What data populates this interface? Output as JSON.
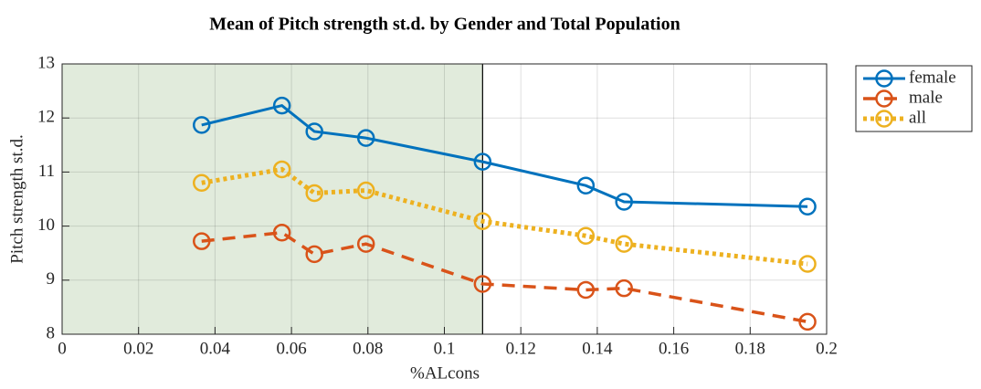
{
  "chart_data": {
    "type": "line",
    "title": "Mean of Pitch strength st.d. by Gender and Total Population",
    "x_label": "%ALcons",
    "y_label": "Pitch strength st.d.",
    "x": [
      0.0365,
      0.0575,
      0.066,
      0.0795,
      0.11,
      0.137,
      0.147,
      0.195
    ],
    "series": [
      {
        "name": "female",
        "color": "#0072bd",
        "linestyle": "solid",
        "values": [
          11.87,
          12.23,
          11.75,
          11.63,
          11.19,
          10.75,
          10.45,
          10.36
        ]
      },
      {
        "name": "male",
        "color": "#d95319",
        "linestyle": "dashed",
        "values": [
          9.72,
          9.88,
          9.48,
          9.67,
          8.93,
          8.82,
          8.85,
          8.23
        ]
      },
      {
        "name": "all",
        "color": "#edb120",
        "linestyle": "dotted",
        "values": [
          10.8,
          11.05,
          10.61,
          10.66,
          10.09,
          9.82,
          9.67,
          9.3
        ]
      }
    ],
    "xlim": [
      0,
      0.2
    ],
    "xticks": [
      0,
      0.02,
      0.04,
      0.06,
      0.08,
      0.1,
      0.12,
      0.14,
      0.16,
      0.18,
      0.2
    ],
    "ylim": [
      8,
      13
    ],
    "yticks": [
      8,
      9,
      10,
      11,
      12,
      13
    ],
    "grid": true,
    "legend": "outside-top-right",
    "shaded_xrange": [
      0,
      0.11
    ],
    "shade_color": "#e1ebdc"
  }
}
